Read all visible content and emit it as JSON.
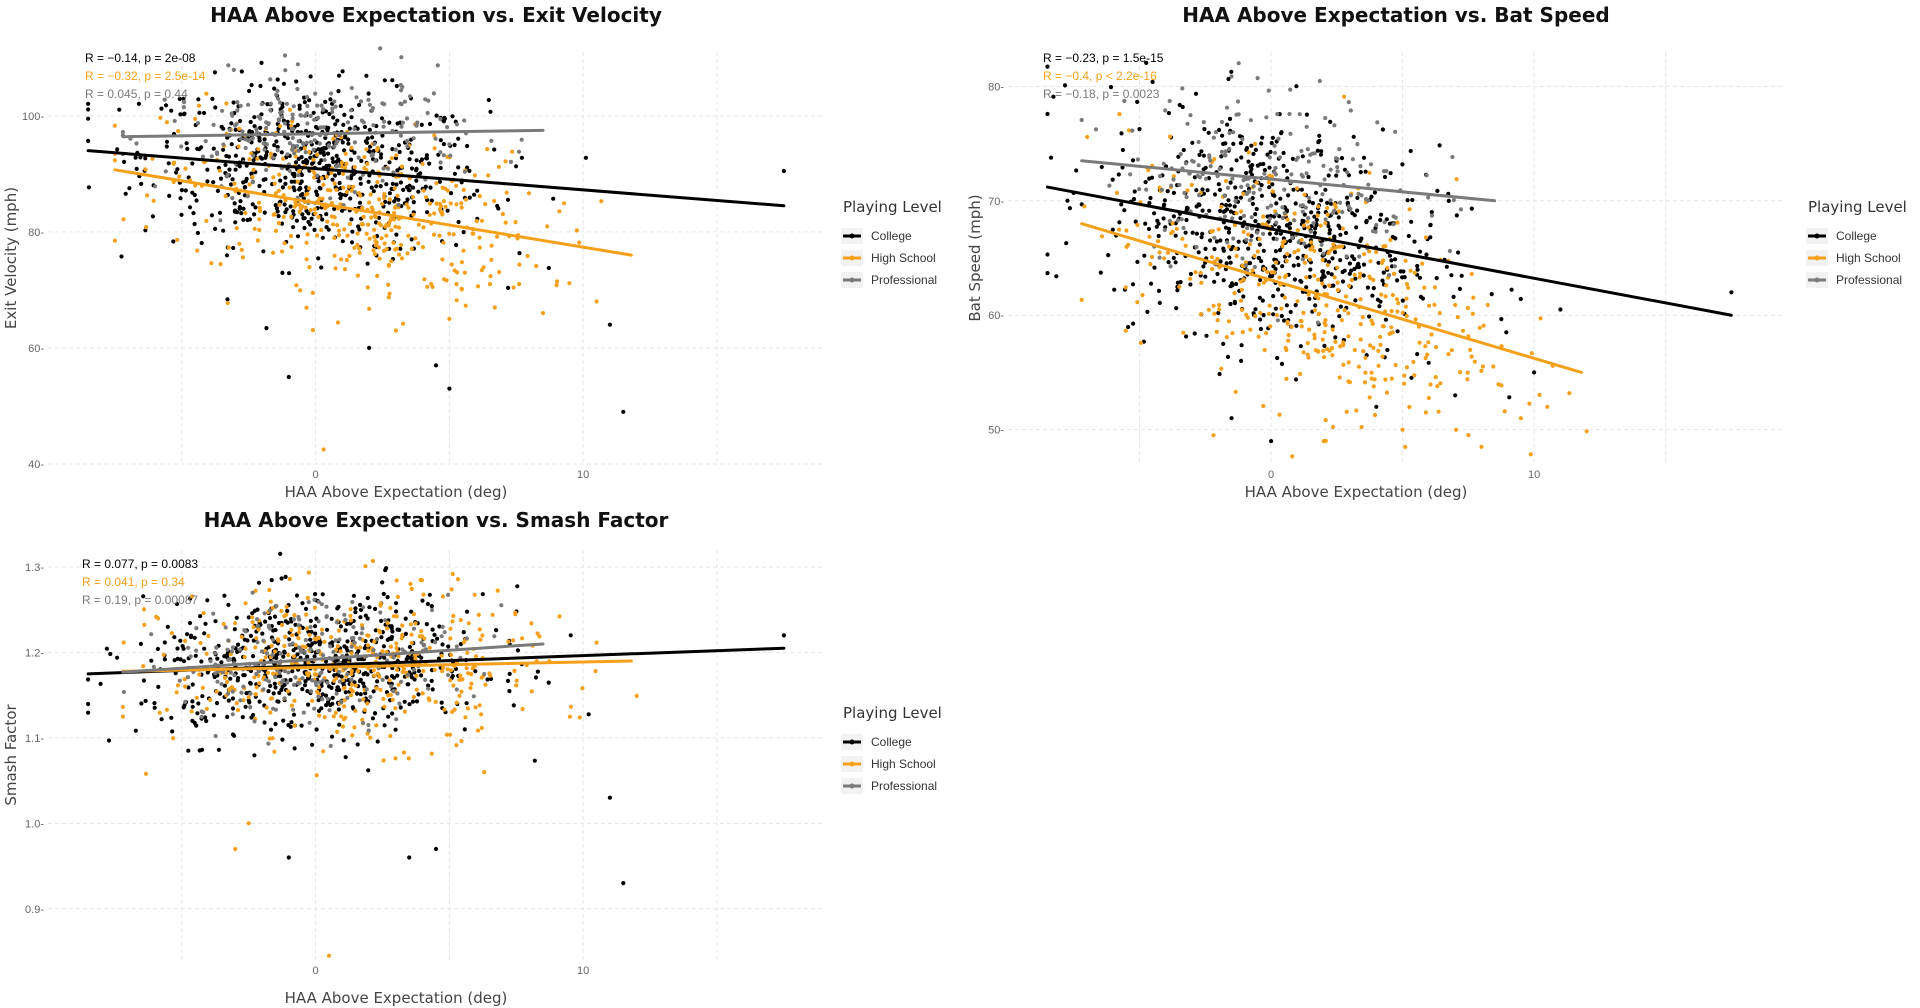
{
  "colors": {
    "College": "#000000",
    "High School": "#f5a01a",
    "Professional": "#7a7a7a"
  },
  "chart_data": [
    {
      "type": "scatter",
      "title": "HAA Above Expectation vs. Exit Velocity",
      "xlabel": "HAA Above Expectation (deg)",
      "ylabel": "Exit Velocity (mph)",
      "xlim": [
        -10,
        19
      ],
      "ylim": [
        40,
        111
      ],
      "xticks": [
        "0",
        "10"
      ],
      "yticks": [
        "40",
        "60",
        "80",
        "100"
      ],
      "ytick_values": [
        40,
        60,
        80,
        100
      ],
      "legend": {
        "title": "Playing Level",
        "entries": [
          "College",
          "High School",
          "Professional"
        ]
      },
      "stats": [
        {
          "series": "College",
          "text": "R = −0.14, p = 2e-08"
        },
        {
          "series": "High School",
          "text": "R = −0.32, p = 2.5e-14"
        },
        {
          "series": "Professional",
          "text": "R = 0.045, p = 0.44"
        }
      ],
      "series": [
        {
          "name": "College",
          "fit": [
            [
              -8.5,
              94.0
            ],
            [
              17.5,
              84.5
            ]
          ],
          "cx": 0,
          "cy": 91,
          "sx": 3.2,
          "sy": 7,
          "n": 650,
          "xmin": -8.5,
          "xmax": 17.5,
          "outliers": [
            [
              -1,
              55
            ],
            [
              2,
              60
            ],
            [
              5,
              53
            ],
            [
              4.5,
              57
            ],
            [
              11,
              64
            ],
            [
              11.5,
              49
            ],
            [
              17.5,
              90.5
            ],
            [
              -8.5,
              99.5
            ]
          ]
        },
        {
          "name": "High School",
          "fit": [
            [
              -7.5,
              90.7
            ],
            [
              11.8,
              76.0
            ]
          ],
          "cx": 1.5,
          "cy": 83,
          "sx": 3.5,
          "sy": 7,
          "n": 420,
          "xmin": -7.5,
          "xmax": 12,
          "outliers": [
            [
              0.3,
              42.5
            ],
            [
              3,
              63
            ],
            [
              5,
              65
            ],
            [
              8.5,
              66
            ],
            [
              10.5,
              68
            ]
          ]
        },
        {
          "name": "Professional",
          "fit": [
            [
              -7.2,
              96.4
            ],
            [
              8.5,
              97.5
            ]
          ],
          "cx": 0,
          "cy": 97,
          "sx": 2.8,
          "sy": 5,
          "n": 230,
          "xmin": -7.2,
          "xmax": 8.5,
          "outliers": []
        }
      ]
    },
    {
      "type": "scatter",
      "title": "HAA Above Expectation vs. Bat Speed",
      "xlabel": "HAA Above Expectation (deg)",
      "ylabel": "Bat Speed (mph)",
      "xlim": [
        -10,
        19.5
      ],
      "ylim": [
        47,
        83
      ],
      "xticks": [
        "0",
        "10"
      ],
      "yticks": [
        "50",
        "60",
        "70",
        "80"
      ],
      "ytick_values": [
        50,
        60,
        70,
        80
      ],
      "legend": {
        "title": "Playing Level",
        "entries": [
          "College",
          "High School",
          "Professional"
        ]
      },
      "stats": [
        {
          "series": "College",
          "text": "R = −0.23, p = 1.5e-15"
        },
        {
          "series": "High School",
          "text": "R = −0.4, p < 2.2e-16"
        },
        {
          "series": "Professional",
          "text": "R = −0.18, p = 0.0023"
        }
      ],
      "series": [
        {
          "name": "College",
          "fit": [
            [
              -8.5,
              71.2
            ],
            [
              17.5,
              60.0
            ]
          ],
          "cx": 0,
          "cy": 68,
          "sx": 3.2,
          "sy": 5,
          "n": 650,
          "xmin": -8.5,
          "xmax": 17.5,
          "outliers": [
            [
              -1.5,
              51
            ],
            [
              0,
              49
            ],
            [
              4,
              52
            ],
            [
              7,
              53
            ],
            [
              10,
              55
            ],
            [
              11,
              60.5
            ],
            [
              17.5,
              62
            ]
          ]
        },
        {
          "name": "High School",
          "fit": [
            [
              -7.2,
              68.0
            ],
            [
              11.8,
              55.0
            ]
          ],
          "cx": 1.5,
          "cy": 61,
          "sx": 3.5,
          "sy": 5,
          "n": 420,
          "xmin": -7.2,
          "xmax": 12,
          "outliers": [
            [
              2,
              49
            ],
            [
              5,
              50
            ],
            [
              8,
              48.5
            ],
            [
              9.5,
              51
            ],
            [
              10.5,
              52
            ]
          ]
        },
        {
          "name": "Professional",
          "fit": [
            [
              -7.2,
              73.5
            ],
            [
              8.5,
              70.0
            ]
          ],
          "cx": 0,
          "cy": 72,
          "sx": 2.8,
          "sy": 4,
          "n": 230,
          "xmin": -7.2,
          "xmax": 8.5,
          "outliers": []
        }
      ]
    },
    {
      "type": "scatter",
      "title": "HAA Above Expectation vs. Smash Factor",
      "xlabel": "HAA Above Expectation (deg)",
      "ylabel": "Smash Factor",
      "xlim": [
        -10,
        19
      ],
      "ylim": [
        0.84,
        1.32
      ],
      "xticks": [
        "0",
        "10"
      ],
      "yticks": [
        "0.9",
        "1.0",
        "1.1",
        "1.2",
        "1.3"
      ],
      "ytick_values": [
        0.9,
        1.0,
        1.1,
        1.2,
        1.3
      ],
      "legend": {
        "title": "Playing Level",
        "entries": [
          "College",
          "High School",
          "Professional"
        ]
      },
      "stats": [
        {
          "series": "College",
          "text": "R = 0.077, p = 0.0083"
        },
        {
          "series": "High School",
          "text": "R = 0.041, p = 0.34"
        },
        {
          "series": "Professional",
          "text": "R = 0.19, p = 0.00087"
        }
      ],
      "series": [
        {
          "name": "College",
          "fit": [
            [
              -8.5,
              1.175
            ],
            [
              17.5,
              1.205
            ]
          ],
          "cx": 0,
          "cy": 1.183,
          "sx": 3.2,
          "sy": 0.04,
          "n": 650,
          "xmin": -8.5,
          "xmax": 17.5,
          "outliers": [
            [
              -1,
              0.96
            ],
            [
              3.5,
              0.96
            ],
            [
              4.5,
              0.97
            ],
            [
              11.5,
              0.93
            ],
            [
              11,
              1.03
            ],
            [
              17.5,
              1.22
            ]
          ]
        },
        {
          "name": "High School",
          "fit": [
            [
              -7.2,
              1.178
            ],
            [
              11.8,
              1.19
            ]
          ],
          "cx": 1.5,
          "cy": 1.18,
          "sx": 3.5,
          "sy": 0.045,
          "n": 420,
          "xmin": -7.2,
          "xmax": 12,
          "outliers": [
            [
              0.5,
              0.845
            ],
            [
              -2.5,
              1.0
            ],
            [
              -3,
              0.97
            ],
            [
              6.3,
              1.06
            ]
          ]
        },
        {
          "name": "Professional",
          "fit": [
            [
              -7.2,
              1.177
            ],
            [
              8.5,
              1.21
            ]
          ],
          "cx": 0,
          "cy": 1.19,
          "sx": 2.8,
          "sy": 0.035,
          "n": 230,
          "xmin": -7.2,
          "xmax": 8.5,
          "outliers": []
        }
      ]
    }
  ]
}
